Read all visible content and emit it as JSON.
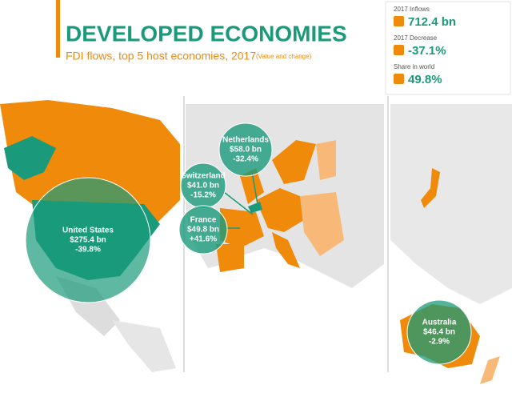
{
  "header": {
    "title": "DEVELOPED ECONOMIES",
    "subtitle": "FDI flows, top 5 host economies, 2017",
    "note": "(Value and change)"
  },
  "stats": [
    {
      "label": "2017 Inflows",
      "value": "712.4 bn"
    },
    {
      "label": "2017 Decrease",
      "value": "-37.1%"
    },
    {
      "label": "Share in world",
      "value": "49.8%"
    }
  ],
  "economies": [
    {
      "name": "United States",
      "value": "$275.4 bn",
      "change": "-39.8%"
    },
    {
      "name": "Netherlands",
      "value": "$58.0 bn",
      "change": "-32.4%"
    },
    {
      "name": "Switzerland",
      "value": "$41.0 bn",
      "change": "-15.2%"
    },
    {
      "name": "France",
      "value": "$49.8 bn",
      "change": "+41.6%"
    },
    {
      "name": "Australia",
      "value": "$46.4 bn",
      "change": "-2.9%"
    }
  ]
}
